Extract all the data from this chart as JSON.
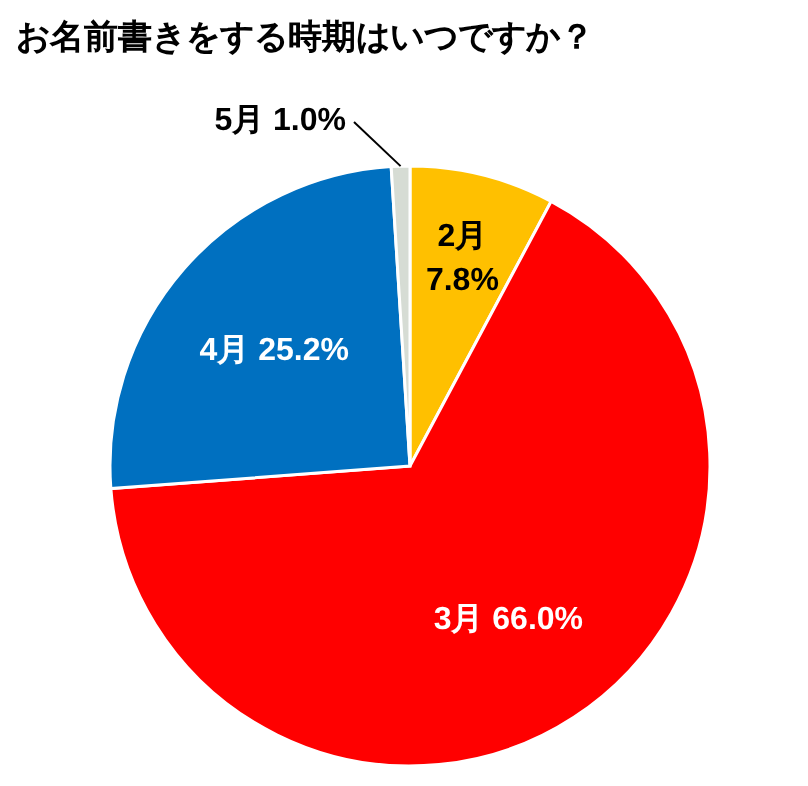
{
  "chart_data": {
    "type": "pie",
    "title": "お名前書きをする時期はいつですか？",
    "categories": [
      "2月",
      "3月",
      "4月",
      "5月"
    ],
    "values": [
      7.8,
      66.0,
      25.2,
      1.0
    ],
    "value_labels": [
      "7.8%",
      "66.0%",
      "25.2%",
      "1.0%"
    ],
    "colors": [
      "#ffc000",
      "#ff0000",
      "#0070c0",
      "#d6dcd4"
    ]
  }
}
